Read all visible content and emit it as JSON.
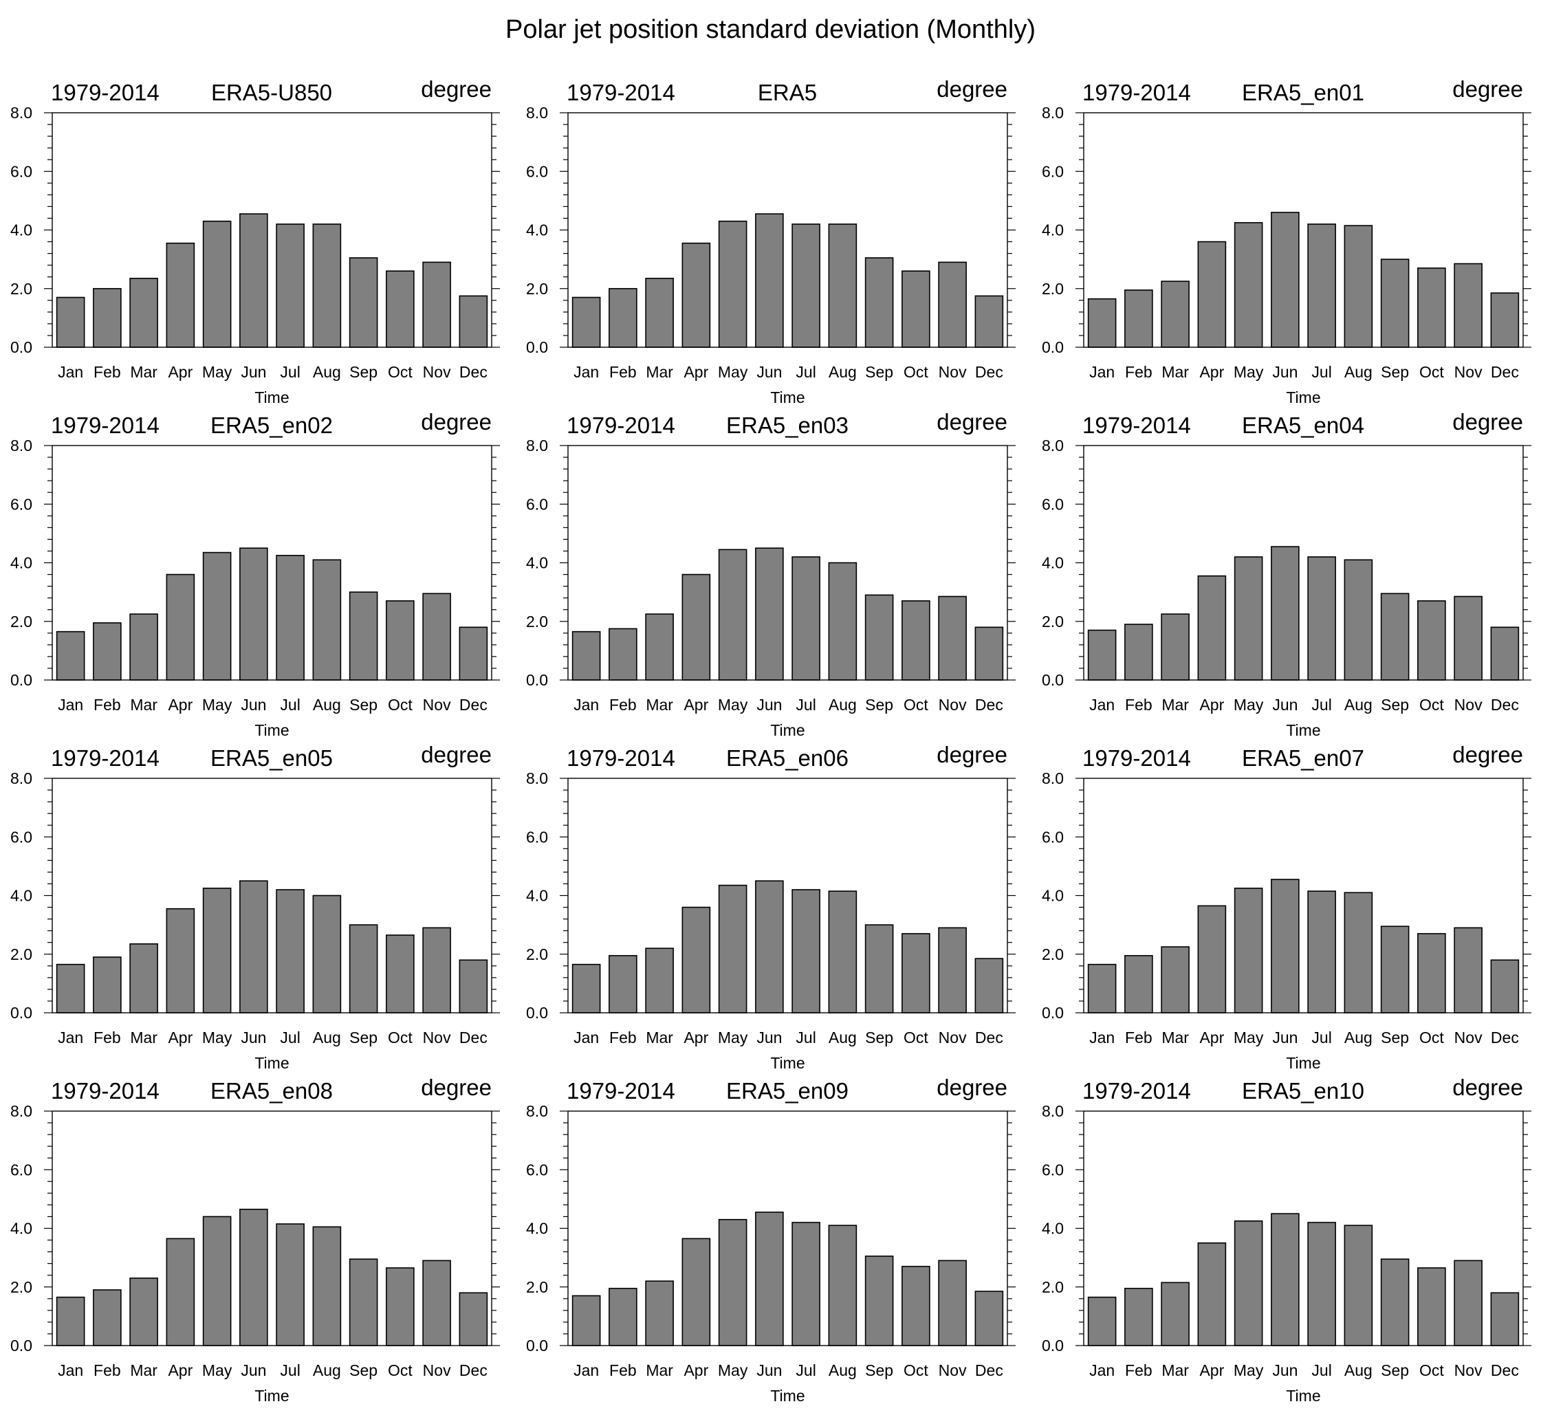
{
  "title": "Polar jet position standard deviation (Monthly)",
  "colors": {
    "bar_fill": "#808080",
    "bar_stroke": "#000000",
    "axis": "#000000",
    "background": "#ffffff"
  },
  "chart_data": [
    {
      "type": "bar",
      "left_label": "1979-2014",
      "center_label": "ERA5-U850",
      "right_label": "degree",
      "xlabel": "Time",
      "ylabel": "",
      "ylim": [
        0,
        8
      ],
      "yticks": [
        "0.0",
        "2.0",
        "4.0",
        "6.0",
        "8.0"
      ],
      "categories": [
        "Jan",
        "Feb",
        "Mar",
        "Apr",
        "May",
        "Jun",
        "Jul",
        "Aug",
        "Sep",
        "Oct",
        "Nov",
        "Dec"
      ],
      "values": [
        1.7,
        2.0,
        2.35,
        3.55,
        4.3,
        4.55,
        4.2,
        4.2,
        3.05,
        2.6,
        2.9,
        1.75
      ]
    },
    {
      "type": "bar",
      "left_label": "1979-2014",
      "center_label": "ERA5",
      "right_label": "degree",
      "xlabel": "Time",
      "ylabel": "",
      "ylim": [
        0,
        8
      ],
      "yticks": [
        "0.0",
        "2.0",
        "4.0",
        "6.0",
        "8.0"
      ],
      "categories": [
        "Jan",
        "Feb",
        "Mar",
        "Apr",
        "May",
        "Jun",
        "Jul",
        "Aug",
        "Sep",
        "Oct",
        "Nov",
        "Dec"
      ],
      "values": [
        1.7,
        2.0,
        2.35,
        3.55,
        4.3,
        4.55,
        4.2,
        4.2,
        3.05,
        2.6,
        2.9,
        1.75
      ]
    },
    {
      "type": "bar",
      "left_label": "1979-2014",
      "center_label": "ERA5_en01",
      "right_label": "degree",
      "xlabel": "Time",
      "ylabel": "",
      "ylim": [
        0,
        8
      ],
      "yticks": [
        "0.0",
        "2.0",
        "4.0",
        "6.0",
        "8.0"
      ],
      "categories": [
        "Jan",
        "Feb",
        "Mar",
        "Apr",
        "May",
        "Jun",
        "Jul",
        "Aug",
        "Sep",
        "Oct",
        "Nov",
        "Dec"
      ],
      "values": [
        1.65,
        1.95,
        2.25,
        3.6,
        4.25,
        4.6,
        4.2,
        4.15,
        3.0,
        2.7,
        2.85,
        1.85
      ]
    },
    {
      "type": "bar",
      "left_label": "1979-2014",
      "center_label": "ERA5_en02",
      "right_label": "degree",
      "xlabel": "Time",
      "ylabel": "",
      "ylim": [
        0,
        8
      ],
      "yticks": [
        "0.0",
        "2.0",
        "4.0",
        "6.0",
        "8.0"
      ],
      "categories": [
        "Jan",
        "Feb",
        "Mar",
        "Apr",
        "May",
        "Jun",
        "Jul",
        "Aug",
        "Sep",
        "Oct",
        "Nov",
        "Dec"
      ],
      "values": [
        1.65,
        1.95,
        2.25,
        3.6,
        4.35,
        4.5,
        4.25,
        4.1,
        3.0,
        2.7,
        2.95,
        1.8
      ]
    },
    {
      "type": "bar",
      "left_label": "1979-2014",
      "center_label": "ERA5_en03",
      "right_label": "degree",
      "xlabel": "Time",
      "ylabel": "",
      "ylim": [
        0,
        8
      ],
      "yticks": [
        "0.0",
        "2.0",
        "4.0",
        "6.0",
        "8.0"
      ],
      "categories": [
        "Jan",
        "Feb",
        "Mar",
        "Apr",
        "May",
        "Jun",
        "Jul",
        "Aug",
        "Sep",
        "Oct",
        "Nov",
        "Dec"
      ],
      "values": [
        1.65,
        1.75,
        2.25,
        3.6,
        4.45,
        4.5,
        4.2,
        4.0,
        2.9,
        2.7,
        2.85,
        1.8
      ]
    },
    {
      "type": "bar",
      "left_label": "1979-2014",
      "center_label": "ERA5_en04",
      "right_label": "degree",
      "xlabel": "Time",
      "ylabel": "",
      "ylim": [
        0,
        8
      ],
      "yticks": [
        "0.0",
        "2.0",
        "4.0",
        "6.0",
        "8.0"
      ],
      "categories": [
        "Jan",
        "Feb",
        "Mar",
        "Apr",
        "May",
        "Jun",
        "Jul",
        "Aug",
        "Sep",
        "Oct",
        "Nov",
        "Dec"
      ],
      "values": [
        1.7,
        1.9,
        2.25,
        3.55,
        4.2,
        4.55,
        4.2,
        4.1,
        2.95,
        2.7,
        2.85,
        1.8
      ]
    },
    {
      "type": "bar",
      "left_label": "1979-2014",
      "center_label": "ERA5_en05",
      "right_label": "degree",
      "xlabel": "Time",
      "ylabel": "",
      "ylim": [
        0,
        8
      ],
      "yticks": [
        "0.0",
        "2.0",
        "4.0",
        "6.0",
        "8.0"
      ],
      "categories": [
        "Jan",
        "Feb",
        "Mar",
        "Apr",
        "May",
        "Jun",
        "Jul",
        "Aug",
        "Sep",
        "Oct",
        "Nov",
        "Dec"
      ],
      "values": [
        1.65,
        1.9,
        2.35,
        3.55,
        4.25,
        4.5,
        4.2,
        4.0,
        3.0,
        2.65,
        2.9,
        1.8
      ]
    },
    {
      "type": "bar",
      "left_label": "1979-2014",
      "center_label": "ERA5_en06",
      "right_label": "degree",
      "xlabel": "Time",
      "ylabel": "",
      "ylim": [
        0,
        8
      ],
      "yticks": [
        "0.0",
        "2.0",
        "4.0",
        "6.0",
        "8.0"
      ],
      "categories": [
        "Jan",
        "Feb",
        "Mar",
        "Apr",
        "May",
        "Jun",
        "Jul",
        "Aug",
        "Sep",
        "Oct",
        "Nov",
        "Dec"
      ],
      "values": [
        1.65,
        1.95,
        2.2,
        3.6,
        4.35,
        4.5,
        4.2,
        4.15,
        3.0,
        2.7,
        2.9,
        1.85
      ]
    },
    {
      "type": "bar",
      "left_label": "1979-2014",
      "center_label": "ERA5_en07",
      "right_label": "degree",
      "xlabel": "Time",
      "ylabel": "",
      "ylim": [
        0,
        8
      ],
      "yticks": [
        "0.0",
        "2.0",
        "4.0",
        "6.0",
        "8.0"
      ],
      "categories": [
        "Jan",
        "Feb",
        "Mar",
        "Apr",
        "May",
        "Jun",
        "Jul",
        "Aug",
        "Sep",
        "Oct",
        "Nov",
        "Dec"
      ],
      "values": [
        1.65,
        1.95,
        2.25,
        3.65,
        4.25,
        4.55,
        4.15,
        4.1,
        2.95,
        2.7,
        2.9,
        1.8
      ]
    },
    {
      "type": "bar",
      "left_label": "1979-2014",
      "center_label": "ERA5_en08",
      "right_label": "degree",
      "xlabel": "Time",
      "ylabel": "",
      "ylim": [
        0,
        8
      ],
      "yticks": [
        "0.0",
        "2.0",
        "4.0",
        "6.0",
        "8.0"
      ],
      "categories": [
        "Jan",
        "Feb",
        "Mar",
        "Apr",
        "May",
        "Jun",
        "Jul",
        "Aug",
        "Sep",
        "Oct",
        "Nov",
        "Dec"
      ],
      "values": [
        1.65,
        1.9,
        2.3,
        3.65,
        4.4,
        4.65,
        4.15,
        4.05,
        2.95,
        2.65,
        2.9,
        1.8
      ]
    },
    {
      "type": "bar",
      "left_label": "1979-2014",
      "center_label": "ERA5_en09",
      "right_label": "degree",
      "xlabel": "Time",
      "ylabel": "",
      "ylim": [
        0,
        8
      ],
      "yticks": [
        "0.0",
        "2.0",
        "4.0",
        "6.0",
        "8.0"
      ],
      "categories": [
        "Jan",
        "Feb",
        "Mar",
        "Apr",
        "May",
        "Jun",
        "Jul",
        "Aug",
        "Sep",
        "Oct",
        "Nov",
        "Dec"
      ],
      "values": [
        1.7,
        1.95,
        2.2,
        3.65,
        4.3,
        4.55,
        4.2,
        4.1,
        3.05,
        2.7,
        2.9,
        1.85
      ]
    },
    {
      "type": "bar",
      "left_label": "1979-2014",
      "center_label": "ERA5_en10",
      "right_label": "degree",
      "xlabel": "Time",
      "ylabel": "",
      "ylim": [
        0,
        8
      ],
      "yticks": [
        "0.0",
        "2.0",
        "4.0",
        "6.0",
        "8.0"
      ],
      "categories": [
        "Jan",
        "Feb",
        "Mar",
        "Apr",
        "May",
        "Jun",
        "Jul",
        "Aug",
        "Sep",
        "Oct",
        "Nov",
        "Dec"
      ],
      "values": [
        1.65,
        1.95,
        2.15,
        3.5,
        4.25,
        4.5,
        4.2,
        4.1,
        2.95,
        2.65,
        2.9,
        1.8
      ]
    }
  ]
}
